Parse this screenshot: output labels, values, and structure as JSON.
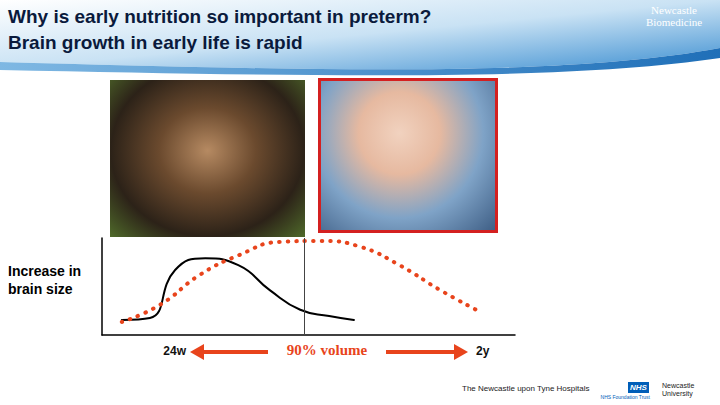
{
  "slide": {
    "title": "Why is early nutrition so important in preterm?",
    "subtitle": "Brain growth in early life is rapid",
    "brand": "Newcastle Biomedicine",
    "footer": [
      "The Newcastle upon Tyne Hospitals",
      "NHS",
      "NHS Foundation Trust",
      "Newcastle University"
    ]
  },
  "chart_data": {
    "type": "line",
    "ylabel": "Increase in brain size",
    "start_label": "24w",
    "end_label": "2y",
    "span_label": "90% volume",
    "xlim": [
      0,
      100
    ],
    "ylim": [
      0,
      100
    ],
    "tick_labels": false,
    "grid": false,
    "marker_line_x": 49,
    "series": [
      {
        "color": "#000000",
        "line_style": "solid",
        "x": [
          4.8,
          11.6,
          17.7,
          25,
          33,
          40.7,
          48,
          55,
          61
        ],
        "values": [
          15.5,
          17.5,
          67,
          79,
          72,
          46,
          26,
          19.6,
          15.5
        ]
      },
      {
        "color": "#e8441c",
        "line_style": "dotted",
        "x": [
          4.8,
          14,
          23.7,
          33,
          43,
          52.8,
          62.5,
          72,
          82,
          91.5
        ],
        "values": [
          13.4,
          31,
          62,
          82,
          96,
          97,
          91,
          72,
          46,
          24
        ]
      }
    ]
  }
}
